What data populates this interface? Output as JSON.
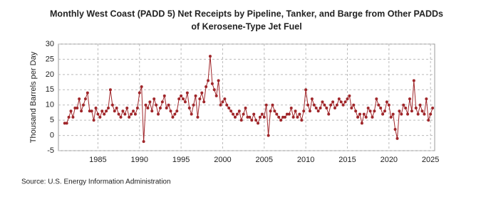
{
  "chart_data": {
    "type": "line",
    "title": "Monthly West Coast (PADD 5) Net Receipts by Pipeline, Tanker, and Barge from Other PADDs",
    "subtitle": "of Kerosene-Type Jet Fuel",
    "y_label": "Thousand Barrels per Day",
    "source": "Source: U.S. Energy Information Administration",
    "xlim": [
      1980.25,
      2025.5
    ],
    "xticks": [
      1985,
      1990,
      1995,
      2000,
      2005,
      2010,
      2015,
      2020,
      2025
    ],
    "ylim": [
      -5,
      30
    ],
    "yticks": [
      -5,
      0,
      5,
      10,
      15,
      20,
      25,
      30
    ],
    "grid": true,
    "x": [
      1981,
      1981.25,
      1981.5,
      1981.75,
      1982,
      1982.25,
      1982.5,
      1982.75,
      1983,
      1983.25,
      1983.5,
      1983.75,
      1984,
      1984.25,
      1984.5,
      1984.75,
      1985,
      1985.25,
      1985.5,
      1985.75,
      1986,
      1986.25,
      1986.5,
      1986.75,
      1987,
      1987.25,
      1987.5,
      1987.75,
      1988,
      1988.25,
      1988.5,
      1988.75,
      1989,
      1989.25,
      1989.5,
      1989.75,
      1990,
      1990.25,
      1990.5,
      1990.75,
      1991,
      1991.25,
      1991.5,
      1991.75,
      1992,
      1992.25,
      1992.5,
      1992.75,
      1993,
      1993.25,
      1993.5,
      1993.75,
      1994,
      1994.25,
      1994.5,
      1994.75,
      1995,
      1995.25,
      1995.5,
      1995.75,
      1996,
      1996.25,
      1996.5,
      1996.75,
      1997,
      1997.25,
      1997.5,
      1997.75,
      1998,
      1998.25,
      1998.5,
      1998.75,
      1999,
      1999.25,
      1999.5,
      1999.75,
      2000,
      2000.25,
      2000.5,
      2000.75,
      2001,
      2001.25,
      2001.5,
      2001.75,
      2002,
      2002.25,
      2002.5,
      2002.75,
      2003,
      2003.25,
      2003.5,
      2003.75,
      2004,
      2004.25,
      2004.5,
      2004.75,
      2005,
      2005.25,
      2005.5,
      2005.75,
      2006,
      2006.25,
      2006.5,
      2006.75,
      2007,
      2007.25,
      2007.5,
      2007.75,
      2008,
      2008.25,
      2008.5,
      2008.75,
      2009,
      2009.25,
      2009.5,
      2009.75,
      2010,
      2010.25,
      2010.5,
      2010.75,
      2011,
      2011.25,
      2011.5,
      2011.75,
      2012,
      2012.25,
      2012.5,
      2012.75,
      2013,
      2013.25,
      2013.5,
      2013.75,
      2014,
      2014.25,
      2014.5,
      2014.75,
      2015,
      2015.25,
      2015.5,
      2015.75,
      2016,
      2016.25,
      2016.5,
      2016.75,
      2017,
      2017.25,
      2017.5,
      2017.75,
      2018,
      2018.25,
      2018.5,
      2018.75,
      2019,
      2019.25,
      2019.5,
      2019.75,
      2020,
      2020.25,
      2020.5,
      2020.75,
      2021,
      2021.25,
      2021.5,
      2021.75,
      2022,
      2022.25,
      2022.5,
      2022.75,
      2023,
      2023.25,
      2023.5,
      2023.75,
      2024,
      2024.25,
      2024.5,
      2024.75,
      2025,
      2025.25
    ],
    "series": [
      {
        "color": "#a0262a",
        "values": [
          4,
          4,
          6,
          8,
          6,
          9,
          9,
          12,
          8,
          10,
          12,
          14,
          8,
          8,
          5,
          9,
          7,
          6,
          8,
          7,
          8,
          9,
          15,
          10,
          8,
          9,
          7,
          6,
          8,
          7,
          9,
          6,
          7,
          8,
          7,
          9,
          14,
          16,
          -2,
          10,
          9,
          11,
          8,
          12,
          10,
          7,
          9,
          11,
          13,
          9,
          10,
          8,
          6,
          7,
          8,
          12,
          13,
          12,
          11,
          14,
          9,
          7,
          10,
          13,
          6,
          12,
          14,
          11,
          16,
          18,
          26,
          17,
          15,
          13,
          18,
          10,
          11,
          12,
          10,
          9,
          8,
          7,
          6,
          7,
          8,
          5,
          7,
          9,
          6,
          6,
          5,
          7,
          5,
          4,
          6,
          7,
          6,
          10,
          0,
          8,
          10,
          8,
          7,
          6,
          5,
          6,
          6,
          7,
          7,
          9,
          6,
          8,
          6,
          7,
          5,
          8,
          15,
          10,
          8,
          12,
          10,
          9,
          8,
          9,
          11,
          10,
          9,
          7,
          10,
          11,
          9,
          10,
          12,
          11,
          10,
          11,
          12,
          13,
          9,
          10,
          8,
          6,
          7,
          4,
          7,
          6,
          9,
          8,
          6,
          8,
          12,
          10,
          9,
          7,
          8,
          11,
          10,
          6,
          7,
          2,
          -1,
          8,
          7,
          10,
          9,
          7,
          12,
          8,
          18,
          9,
          7,
          10,
          8,
          7,
          12,
          5,
          7,
          9
        ]
      }
    ]
  }
}
